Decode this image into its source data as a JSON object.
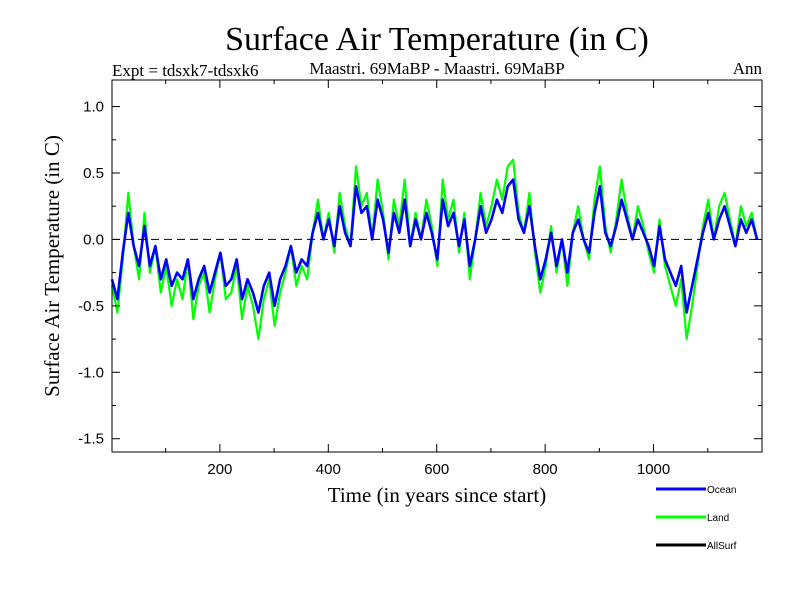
{
  "chart_data": {
    "type": "line",
    "title": "Surface Air Temperature (in C)",
    "subtitle_left": "Expt = tdsxk7-tdsxk6",
    "subtitle_center": "Maastri.  69MaBP - Maastri.  69MaBP",
    "subtitle_right": "Ann",
    "xlabel": "Time (in years since start)",
    "ylabel": "Surface Air Temperature (in C)",
    "xlim": [
      1,
      1200
    ],
    "ylim": [
      -1.6,
      1.2
    ],
    "xticks": [
      {
        "value": 200,
        "label": "200"
      },
      {
        "value": 400,
        "label": "400"
      },
      {
        "value": 600,
        "label": "600"
      },
      {
        "value": 800,
        "label": "800"
      },
      {
        "value": 1000,
        "label": "1000"
      }
    ],
    "yticks": [
      {
        "value": 1.0,
        "label": "1.0"
      },
      {
        "value": 0.5,
        "label": "0.5"
      },
      {
        "value": 0.0,
        "label": "0.0"
      },
      {
        "value": -0.5,
        "label": "-0.5"
      },
      {
        "value": -1.0,
        "label": "-1.0"
      },
      {
        "value": -1.5,
        "label": "-1.5"
      }
    ],
    "reference_line": {
      "value": 0.0,
      "style": "dashed"
    },
    "legend": [
      {
        "name": "Ocean",
        "color": "#0000ff"
      },
      {
        "name": "Land",
        "color": "#00ff00"
      },
      {
        "name": "AllSurf",
        "color": "#000000"
      }
    ],
    "series": [
      {
        "name": "Land",
        "color": "#00ff00",
        "x_start": 1,
        "x_step": 10,
        "values": [
          -0.35,
          -0.55,
          -0.15,
          0.35,
          -0.05,
          -0.3,
          0.2,
          -0.25,
          -0.05,
          -0.4,
          -0.2,
          -0.5,
          -0.3,
          -0.45,
          -0.15,
          -0.6,
          -0.35,
          -0.25,
          -0.55,
          -0.3,
          -0.1,
          -0.45,
          -0.4,
          -0.2,
          -0.6,
          -0.35,
          -0.5,
          -0.75,
          -0.45,
          -0.3,
          -0.65,
          -0.4,
          -0.25,
          -0.05,
          -0.35,
          -0.2,
          -0.3,
          0.05,
          0.3,
          0.0,
          0.2,
          -0.1,
          0.35,
          0.1,
          -0.05,
          0.55,
          0.25,
          0.35,
          0.0,
          0.45,
          0.2,
          -0.15,
          0.3,
          0.1,
          0.45,
          -0.05,
          0.2,
          0.0,
          0.3,
          0.1,
          -0.2,
          0.45,
          0.15,
          0.3,
          -0.1,
          0.2,
          -0.3,
          0.0,
          0.35,
          0.1,
          0.25,
          0.45,
          0.3,
          0.55,
          0.6,
          0.2,
          0.05,
          0.35,
          -0.1,
          -0.4,
          -0.2,
          0.1,
          -0.25,
          0.0,
          -0.35,
          0.05,
          0.25,
          0.0,
          -0.15,
          0.3,
          0.55,
          0.1,
          -0.1,
          0.15,
          0.45,
          0.2,
          0.0,
          0.25,
          0.1,
          -0.1,
          -0.25,
          0.15,
          -0.2,
          -0.35,
          -0.5,
          -0.3,
          -0.75,
          -0.5,
          -0.2,
          0.1,
          0.3,
          0.0,
          0.25,
          0.35,
          0.15,
          -0.05,
          0.25,
          0.1,
          0.2,
          0.0
        ]
      },
      {
        "name": "Ocean",
        "color": "#0000ff",
        "x_start": 1,
        "x_step": 10,
        "values": [
          -0.3,
          -0.45,
          -0.1,
          0.2,
          -0.05,
          -0.2,
          0.1,
          -0.2,
          -0.05,
          -0.3,
          -0.15,
          -0.35,
          -0.25,
          -0.3,
          -0.15,
          -0.45,
          -0.3,
          -0.2,
          -0.4,
          -0.25,
          -0.1,
          -0.35,
          -0.3,
          -0.15,
          -0.45,
          -0.3,
          -0.4,
          -0.55,
          -0.35,
          -0.25,
          -0.5,
          -0.3,
          -0.2,
          -0.05,
          -0.25,
          -0.15,
          -0.2,
          0.05,
          0.2,
          0.0,
          0.15,
          -0.05,
          0.25,
          0.05,
          -0.05,
          0.4,
          0.2,
          0.25,
          0.0,
          0.3,
          0.15,
          -0.1,
          0.2,
          0.05,
          0.3,
          -0.05,
          0.15,
          0.0,
          0.2,
          0.05,
          -0.15,
          0.3,
          0.1,
          0.2,
          -0.05,
          0.15,
          -0.2,
          0.0,
          0.25,
          0.05,
          0.15,
          0.3,
          0.2,
          0.4,
          0.45,
          0.15,
          0.05,
          0.25,
          -0.05,
          -0.3,
          -0.15,
          0.05,
          -0.2,
          0.0,
          -0.25,
          0.05,
          0.15,
          0.0,
          -0.1,
          0.2,
          0.4,
          0.05,
          -0.05,
          0.1,
          0.3,
          0.15,
          0.0,
          0.15,
          0.05,
          -0.05,
          -0.2,
          0.1,
          -0.15,
          -0.25,
          -0.35,
          -0.2,
          -0.55,
          -0.35,
          -0.15,
          0.05,
          0.2,
          0.0,
          0.15,
          0.25,
          0.1,
          -0.05,
          0.15,
          0.05,
          0.15,
          0.0
        ]
      }
    ]
  }
}
